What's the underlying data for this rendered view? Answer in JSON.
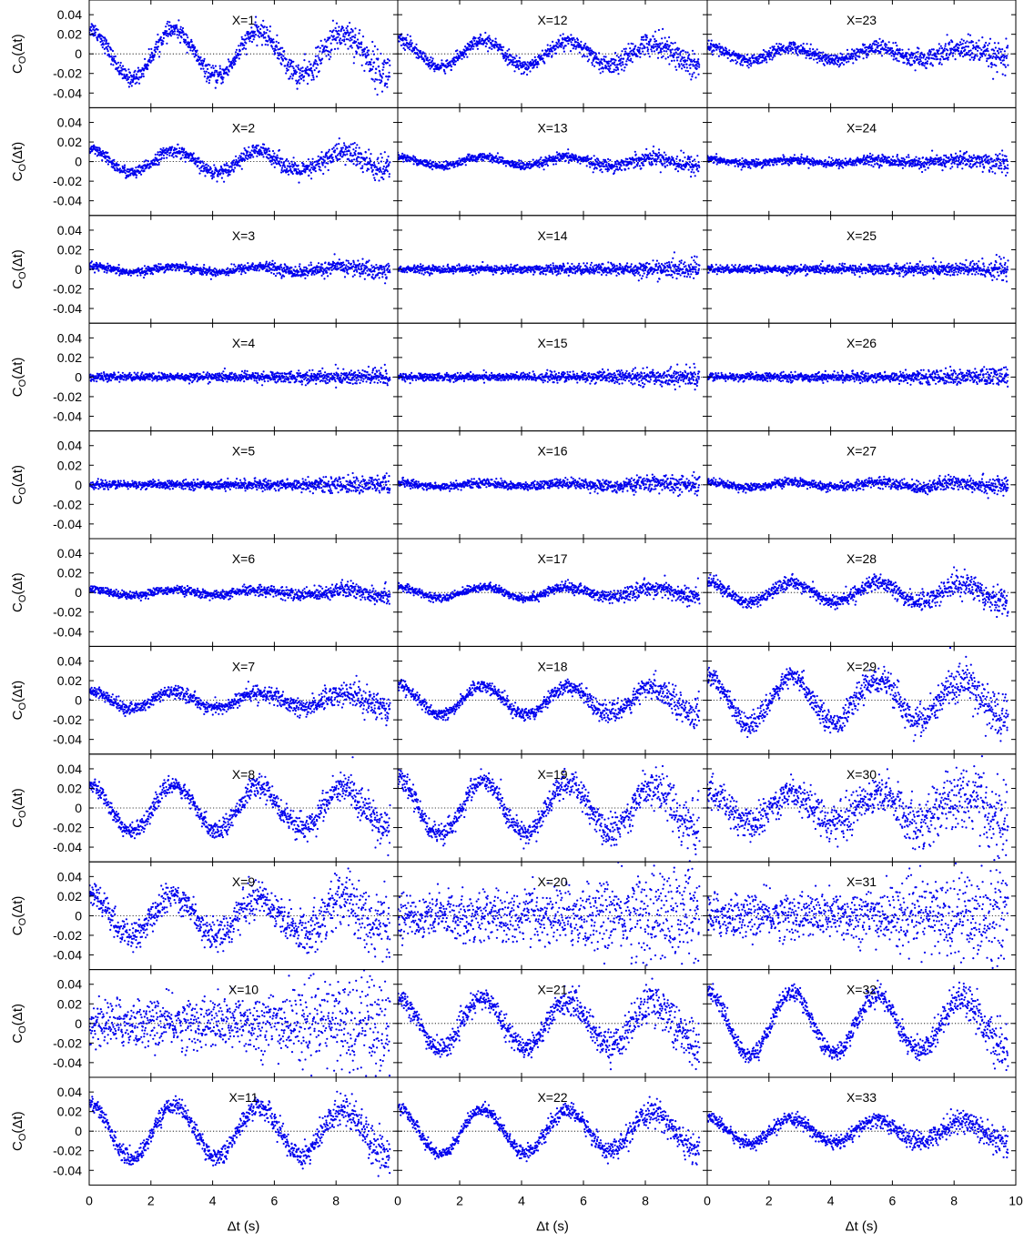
{
  "chart_data": {
    "type": "scatter",
    "layout": {
      "rows": 11,
      "columns": 3,
      "order": "column-major"
    },
    "panel_labels": [
      "X=1",
      "X=2",
      "X=3",
      "X=4",
      "X=5",
      "X=6",
      "X=7",
      "X=8",
      "X=9",
      "X=10",
      "X=11",
      "X=12",
      "X=13",
      "X=14",
      "X=15",
      "X=16",
      "X=17",
      "X=18",
      "X=19",
      "X=20",
      "X=21",
      "X=22",
      "X=23",
      "X=24",
      "X=25",
      "X=26",
      "X=27",
      "X=28",
      "X=29",
      "X=30",
      "X=31",
      "X=32",
      "X=33"
    ],
    "xlabel": "Δt (s)",
    "ylabel_main": "C",
    "ylabel_sub": "O",
    "ylabel_tail": "(Δt)",
    "xlim": [
      0,
      10
    ],
    "ylim": [
      -0.055,
      0.055
    ],
    "x_ticks": [
      0,
      2,
      4,
      6,
      8,
      10
    ],
    "x_tick_labels": [
      "0",
      "2",
      "4",
      "6",
      "8",
      "10"
    ],
    "y_ticks": [
      0.04,
      0.02,
      0,
      -0.02,
      -0.04
    ],
    "y_tick_labels": [
      "0.04",
      "0.02",
      "0",
      "-0.02",
      "-0.04"
    ],
    "reference_line": {
      "y": 0,
      "style": "dotted"
    },
    "marker_color": "#0000ee",
    "grid": false,
    "legend": "none",
    "panels": [
      {
        "label": "X=1",
        "amplitude": 0.026,
        "noise": 0.004,
        "phase_dir": 1
      },
      {
        "label": "X=2",
        "amplitude": 0.012,
        "noise": 0.003,
        "phase_dir": 1
      },
      {
        "label": "X=3",
        "amplitude": 0.003,
        "noise": 0.002,
        "phase_dir": 1
      },
      {
        "label": "X=4",
        "amplitude": 0.0,
        "noise": 0.002,
        "phase_dir": 1
      },
      {
        "label": "X=5",
        "amplitude": 0.0,
        "noise": 0.002,
        "phase_dir": 1
      },
      {
        "label": "X=6",
        "amplitude": 0.003,
        "noise": 0.002,
        "phase_dir": 1
      },
      {
        "label": "X=7",
        "amplitude": 0.009,
        "noise": 0.003,
        "phase_dir": 1
      },
      {
        "label": "X=8",
        "amplitude": 0.025,
        "noise": 0.004,
        "phase_dir": 1
      },
      {
        "label": "X=9",
        "amplitude": 0.022,
        "noise": 0.007,
        "phase_dir": 1
      },
      {
        "label": "X=10",
        "amplitude": 0.0,
        "noise": 0.012,
        "phase_dir": 1
      },
      {
        "label": "X=11",
        "amplitude": 0.029,
        "noise": 0.004,
        "phase_dir": 1
      },
      {
        "label": "X=12",
        "amplitude": 0.014,
        "noise": 0.003,
        "phase_dir": 1
      },
      {
        "label": "X=13",
        "amplitude": 0.005,
        "noise": 0.002,
        "phase_dir": 1
      },
      {
        "label": "X=14",
        "amplitude": 0.0,
        "noise": 0.002,
        "phase_dir": 1
      },
      {
        "label": "X=15",
        "amplitude": 0.0,
        "noise": 0.002,
        "phase_dir": 1
      },
      {
        "label": "X=16",
        "amplitude": 0.002,
        "noise": 0.002,
        "phase_dir": 1
      },
      {
        "label": "X=17",
        "amplitude": 0.006,
        "noise": 0.002,
        "phase_dir": 1
      },
      {
        "label": "X=18",
        "amplitude": 0.016,
        "noise": 0.003,
        "phase_dir": 1
      },
      {
        "label": "X=19",
        "amplitude": 0.029,
        "noise": 0.005,
        "phase_dir": 1
      },
      {
        "label": "X=20",
        "amplitude": 0.0,
        "noise": 0.012,
        "phase_dir": 1
      },
      {
        "label": "X=21",
        "amplitude": 0.027,
        "noise": 0.005,
        "phase_dir": 1
      },
      {
        "label": "X=22",
        "amplitude": 0.024,
        "noise": 0.003,
        "phase_dir": 1
      },
      {
        "label": "X=23",
        "amplitude": 0.007,
        "noise": 0.003,
        "phase_dir": 1
      },
      {
        "label": "X=24",
        "amplitude": 0.002,
        "noise": 0.002,
        "phase_dir": 1
      },
      {
        "label": "X=25",
        "amplitude": 0.0,
        "noise": 0.002,
        "phase_dir": 1
      },
      {
        "label": "X=26",
        "amplitude": 0.0,
        "noise": 0.002,
        "phase_dir": 1
      },
      {
        "label": "X=27",
        "amplitude": 0.003,
        "noise": 0.002,
        "phase_dir": 1
      },
      {
        "label": "X=28",
        "amplitude": 0.011,
        "noise": 0.003,
        "phase_dir": 1
      },
      {
        "label": "X=29",
        "amplitude": 0.025,
        "noise": 0.005,
        "phase_dir": 1
      },
      {
        "label": "X=30",
        "amplitude": 0.017,
        "noise": 0.008,
        "phase_dir": 1
      },
      {
        "label": "X=31",
        "amplitude": 0.0,
        "noise": 0.011,
        "phase_dir": 1
      },
      {
        "label": "X=32",
        "amplitude": 0.034,
        "noise": 0.004,
        "phase_dir": 1
      },
      {
        "label": "X=33",
        "amplitude": 0.013,
        "noise": 0.003,
        "phase_dir": 1
      }
    ]
  }
}
